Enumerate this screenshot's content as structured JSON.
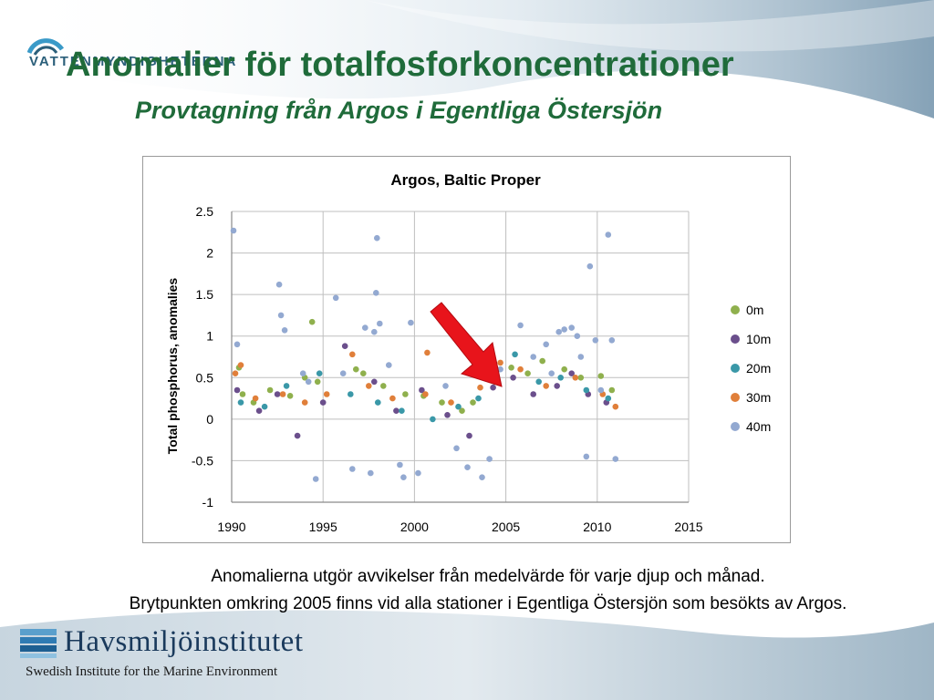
{
  "slide": {
    "title": "Anomalier för totalfosforkoncentrationer",
    "subtitle": "Provtagning från Argos i Egentliga Östersjön",
    "caption_line1": "Anomalierna utgör avvikelser från medelvärde för varje djup och månad.",
    "caption_line2": "Brytpunkten omkring 2005 finns vid alla stationer i Egentliga Östersjön som besökts av Argos.",
    "logo_top_text": "VATTENMYNDIGHETERNA",
    "logo_bottom_name": "Havsmiljöinstitutet",
    "logo_bottom_sub": "Swedish Institute for the Marine Environment"
  },
  "colors": {
    "title": "#1f6b3a",
    "arrow": "#e8141b",
    "grid": "#bfbfbf"
  },
  "chart_data": {
    "type": "scatter",
    "title": "Argos, Baltic Proper",
    "xlabel": "",
    "ylabel": "Total phosphorus, anomalies",
    "xlim": [
      1990,
      2015
    ],
    "ylim": [
      -1,
      2.5
    ],
    "x_ticks": [
      "1990",
      "1995",
      "2000",
      "2005",
      "2010",
      "2015"
    ],
    "y_ticks": [
      "2.5",
      "2",
      "1.5",
      "1",
      "0.5",
      "0",
      "-0.5",
      "-1"
    ],
    "grid": true,
    "legend_position": "right",
    "series": [
      {
        "name": "0m",
        "color": "#8fb04d",
        "points": [
          [
            1990.4,
            0.62
          ],
          [
            1990.6,
            0.3
          ],
          [
            1991.2,
            0.2
          ],
          [
            1992.1,
            0.35
          ],
          [
            1993.2,
            0.28
          ],
          [
            1994.0,
            0.5
          ],
          [
            1994.4,
            1.17
          ],
          [
            1994.7,
            0.45
          ],
          [
            1996.8,
            0.6
          ],
          [
            1997.2,
            0.55
          ],
          [
            1998.3,
            0.4
          ],
          [
            1999.5,
            0.3
          ],
          [
            2000.5,
            0.28
          ],
          [
            2001.5,
            0.2
          ],
          [
            2002.6,
            0.1
          ],
          [
            2003.2,
            0.2
          ],
          [
            2004.4,
            0.45
          ],
          [
            2005.3,
            0.62
          ],
          [
            2006.2,
            0.55
          ],
          [
            2007.0,
            0.7
          ],
          [
            2008.2,
            0.6
          ],
          [
            2009.1,
            0.5
          ],
          [
            2010.2,
            0.52
          ],
          [
            2010.8,
            0.35
          ]
        ]
      },
      {
        "name": "10m",
        "color": "#6b4f8c",
        "points": [
          [
            1990.3,
            0.35
          ],
          [
            1991.5,
            0.1
          ],
          [
            1992.5,
            0.3
          ],
          [
            1993.6,
            -0.2
          ],
          [
            1995.0,
            0.2
          ],
          [
            1996.2,
            0.88
          ],
          [
            1997.8,
            0.45
          ],
          [
            1999.0,
            0.1
          ],
          [
            2000.4,
            0.35
          ],
          [
            2001.8,
            0.05
          ],
          [
            2003.0,
            -0.2
          ],
          [
            2004.3,
            0.38
          ],
          [
            2005.4,
            0.5
          ],
          [
            2006.5,
            0.3
          ],
          [
            2007.8,
            0.4
          ],
          [
            2008.6,
            0.55
          ],
          [
            2009.5,
            0.3
          ],
          [
            2010.5,
            0.2
          ]
        ]
      },
      {
        "name": "20m",
        "color": "#3a98a8",
        "points": [
          [
            1990.5,
            0.2
          ],
          [
            1991.8,
            0.15
          ],
          [
            1993.0,
            0.4
          ],
          [
            1994.8,
            0.55
          ],
          [
            1996.5,
            0.3
          ],
          [
            1998.0,
            0.2
          ],
          [
            1999.3,
            0.1
          ],
          [
            2001.0,
            0.0
          ],
          [
            2002.4,
            0.15
          ],
          [
            2003.5,
            0.25
          ],
          [
            2005.5,
            0.78
          ],
          [
            2006.8,
            0.45
          ],
          [
            2008.0,
            0.5
          ],
          [
            2009.4,
            0.35
          ],
          [
            2010.6,
            0.25
          ]
        ]
      },
      {
        "name": "30m",
        "color": "#e07f3a",
        "points": [
          [
            1990.2,
            0.55
          ],
          [
            1990.5,
            0.65
          ],
          [
            1991.3,
            0.25
          ],
          [
            1992.8,
            0.3
          ],
          [
            1994.0,
            0.2
          ],
          [
            1995.2,
            0.3
          ],
          [
            1996.6,
            0.78
          ],
          [
            1997.5,
            0.4
          ],
          [
            1998.8,
            0.25
          ],
          [
            2000.6,
            0.3
          ],
          [
            2000.7,
            0.8
          ],
          [
            2002.0,
            0.2
          ],
          [
            2003.6,
            0.38
          ],
          [
            2004.7,
            0.68
          ],
          [
            2005.8,
            0.6
          ],
          [
            2007.2,
            0.4
          ],
          [
            2008.8,
            0.5
          ],
          [
            2010.3,
            0.3
          ],
          [
            2011.0,
            0.15
          ]
        ]
      },
      {
        "name": "40m",
        "color": "#93a9d1",
        "points": [
          [
            1990.1,
            2.27
          ],
          [
            1990.3,
            0.9
          ],
          [
            1992.6,
            1.62
          ],
          [
            1992.7,
            1.25
          ],
          [
            1992.9,
            1.07
          ],
          [
            1993.9,
            0.55
          ],
          [
            1994.2,
            0.45
          ],
          [
            1994.6,
            -0.72
          ],
          [
            1995.7,
            1.46
          ],
          [
            1996.1,
            0.55
          ],
          [
            1996.6,
            -0.6
          ],
          [
            1997.3,
            1.1
          ],
          [
            1997.6,
            -0.65
          ],
          [
            1997.8,
            1.05
          ],
          [
            1997.9,
            1.52
          ],
          [
            1997.95,
            2.18
          ],
          [
            1998.1,
            1.15
          ],
          [
            1998.6,
            0.65
          ],
          [
            1999.2,
            -0.55
          ],
          [
            1999.4,
            -0.7
          ],
          [
            1999.8,
            1.16
          ],
          [
            2000.2,
            -0.65
          ],
          [
            2001.7,
            0.4
          ],
          [
            2002.3,
            -0.35
          ],
          [
            2002.9,
            -0.58
          ],
          [
            2003.7,
            -0.7
          ],
          [
            2004.1,
            -0.48
          ],
          [
            2004.7,
            0.6
          ],
          [
            2005.8,
            1.13
          ],
          [
            2006.5,
            0.75
          ],
          [
            2007.2,
            0.9
          ],
          [
            2007.5,
            0.55
          ],
          [
            2007.9,
            1.05
          ],
          [
            2008.2,
            1.08
          ],
          [
            2008.6,
            1.1
          ],
          [
            2008.9,
            1.0
          ],
          [
            2009.1,
            0.75
          ],
          [
            2009.4,
            -0.45
          ],
          [
            2009.6,
            1.84
          ],
          [
            2009.9,
            0.95
          ],
          [
            2010.2,
            0.35
          ],
          [
            2010.6,
            2.22
          ],
          [
            2010.8,
            0.95
          ],
          [
            2011.0,
            -0.48
          ]
        ]
      }
    ]
  }
}
